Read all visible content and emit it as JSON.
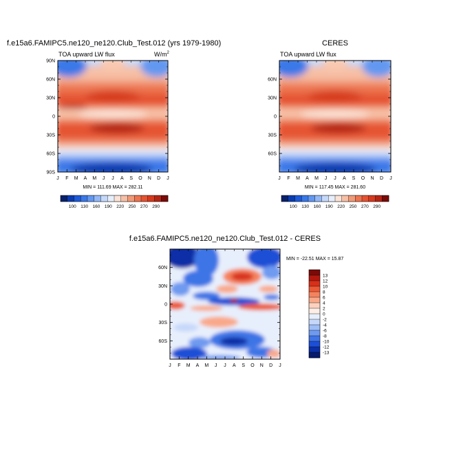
{
  "panels": [
    {
      "id": "model",
      "title": "f.e15a6.FAMIPC5.ne120_ne120.Club_Test.012 (yrs 1979-1980)",
      "left_label": "TOA upward LW flux",
      "right_label": "W/m",
      "right_label_sup": "2",
      "stats": "MIN = 111.69 MAX = 282.11"
    },
    {
      "id": "obs",
      "title": "CERES",
      "left_label": "TOA upward LW flux",
      "stats": "MIN = 117.45 MAX = 281.60"
    },
    {
      "id": "diff",
      "title": "f.e15a6.FAMIPC5.ne120_ne120.Club_Test.012 - CERES",
      "stats": "MIN = -22.51 MAX =  15.87"
    }
  ],
  "chart_data": [
    {
      "type": "heatmap",
      "panel": "model",
      "x_tick_labels": [
        "J",
        "F",
        "M",
        "A",
        "M",
        "J",
        "J",
        "A",
        "S",
        "O",
        "N",
        "D",
        "J"
      ],
      "y_tick_labels": [
        "90N",
        "60N",
        "30N",
        "0",
        "30S",
        "60S",
        "90S"
      ],
      "y_values": [
        90,
        60,
        30,
        0,
        -30,
        -60,
        -90
      ],
      "xlim": [
        0,
        12
      ],
      "ylim": [
        -90,
        90
      ],
      "colorbar": {
        "labels": [
          "100",
          "130",
          "160",
          "190",
          "220",
          "250",
          "270",
          "290"
        ],
        "colors": [
          "#08216b",
          "#0a3cb0",
          "#1e5ad8",
          "#3a78e8",
          "#6498f0",
          "#94b8f5",
          "#c4d8f9",
          "#e6eefc",
          "#fbe2d6",
          "#f6c0a6",
          "#f19a78",
          "#ec7450",
          "#e55332",
          "#d63a1e",
          "#b52514",
          "#7a0a08"
        ]
      }
    },
    {
      "type": "heatmap",
      "panel": "obs",
      "x_tick_labels": [
        "J",
        "F",
        "M",
        "A",
        "M",
        "J",
        "J",
        "A",
        "S",
        "O",
        "N",
        "D",
        "J"
      ],
      "y_tick_labels": [
        "60N",
        "30N",
        "0",
        "30S",
        "60S"
      ],
      "y_values": [
        60,
        30,
        0,
        -30,
        -60
      ],
      "xlim": [
        0,
        12
      ],
      "ylim": [
        -90,
        90
      ],
      "colorbar": {
        "labels": [
          "100",
          "130",
          "160",
          "190",
          "220",
          "250",
          "270",
          "290"
        ],
        "colors": [
          "#08216b",
          "#0a3cb0",
          "#1e5ad8",
          "#3a78e8",
          "#6498f0",
          "#94b8f5",
          "#c4d8f9",
          "#e6eefc",
          "#fbe2d6",
          "#f6c0a6",
          "#f19a78",
          "#ec7450",
          "#e55332",
          "#d63a1e",
          "#b52514",
          "#7a0a08"
        ]
      }
    },
    {
      "type": "heatmap",
      "panel": "diff",
      "x_tick_labels": [
        "J",
        "F",
        "M",
        "A",
        "M",
        "J",
        "J",
        "A",
        "S",
        "O",
        "N",
        "D",
        "J"
      ],
      "y_tick_labels": [
        "60N",
        "30N",
        "0",
        "30S",
        "60S"
      ],
      "y_values": [
        60,
        30,
        0,
        -30,
        -60
      ],
      "xlim": [
        0,
        12
      ],
      "ylim": [
        -90,
        90
      ],
      "colorbar": {
        "labels": [
          "13",
          "12",
          "10",
          "8",
          "6",
          "4",
          "2",
          "0",
          "-2",
          "-4",
          "-6",
          "-8",
          "-10",
          "-12",
          "-13"
        ],
        "colors": [
          "#7a0a08",
          "#b3180e",
          "#d8301a",
          "#ec5a36",
          "#f5825e",
          "#f9a98a",
          "#fbd2bf",
          "#fdeee6",
          "#e8effc",
          "#c6d8fa",
          "#9dbdf7",
          "#6e9af0",
          "#3e74e6",
          "#1d4fd6",
          "#0b2fa6",
          "#061a6e"
        ]
      }
    }
  ]
}
